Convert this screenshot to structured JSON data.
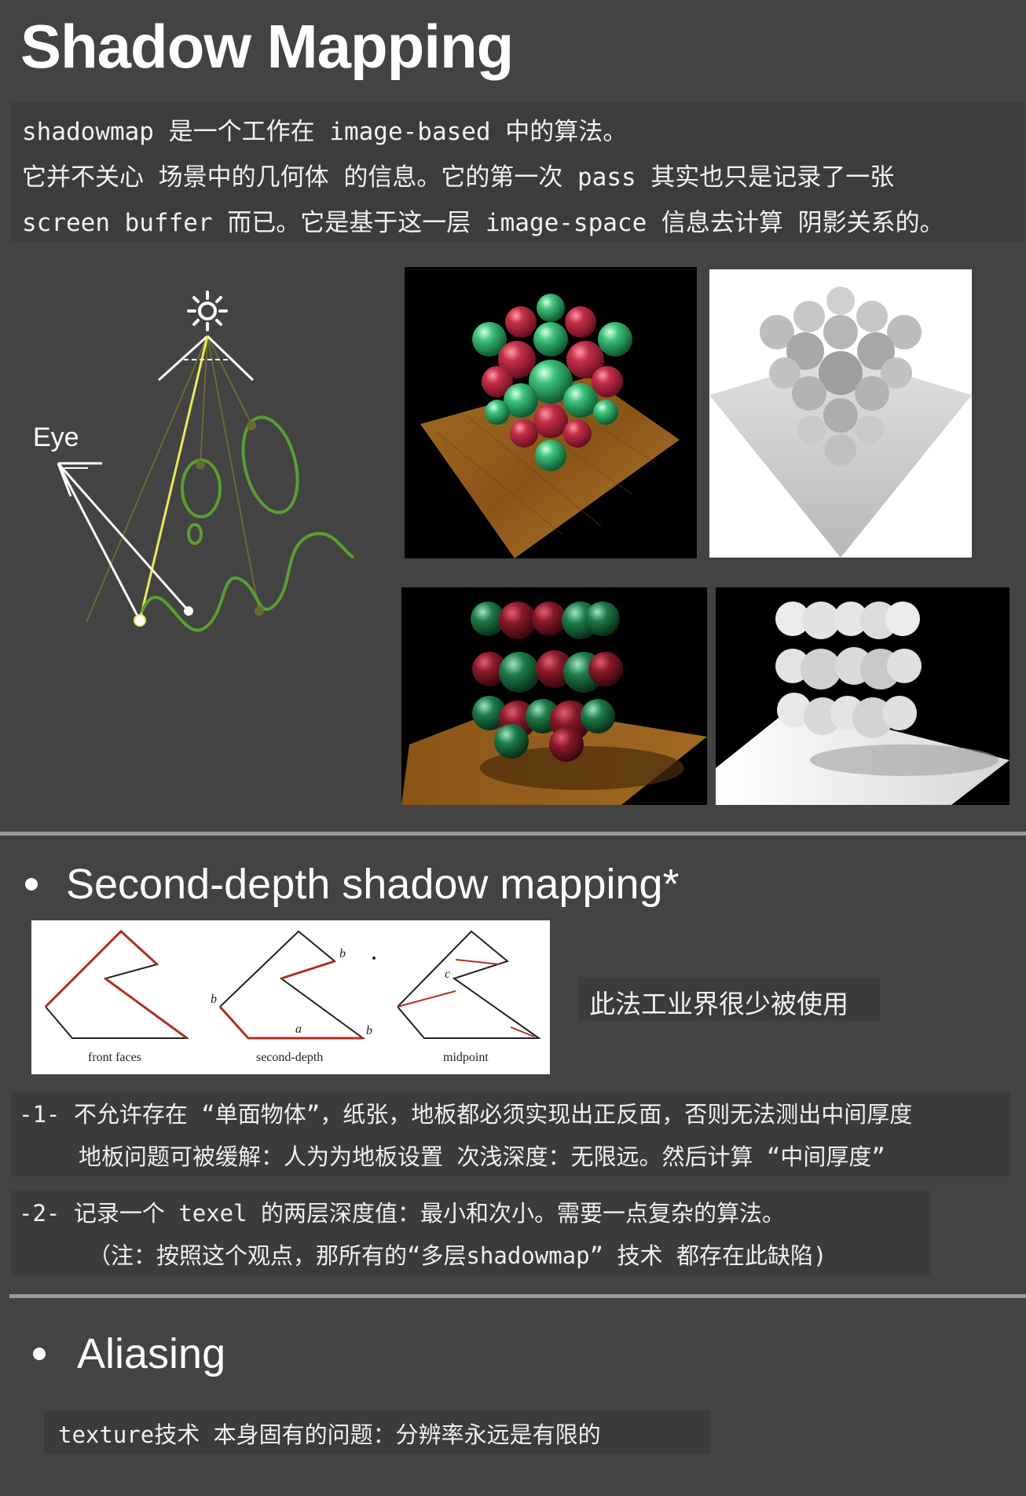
{
  "page": {
    "title": "Shadow Mapping"
  },
  "intro": {
    "lines": [
      "shadowmap 是一个工作在 image-based 中的算法。",
      "它并不关心 场景中的几何体 的信息。它的第一次 pass 其实也只是记录了一张",
      "screen buffer 而已。它是基于这一层 image-space 信息去计算 阴影关系的。"
    ]
  },
  "illustration": {
    "eye_label": "Eye",
    "light_icon": "sun-icon"
  },
  "renders": {
    "top_color_alt": "spheres-color-render",
    "top_depth_alt": "spheres-depth-render",
    "bottom_color_alt": "layered-spheres-color-render",
    "bottom_depth_alt": "layered-spheres-depth-render"
  },
  "second_depth": {
    "heading": "Second-depth shadow mapping*",
    "diagram_labels": {
      "panel1": "front faces",
      "panel2": "second-depth",
      "panel3": "midpoint",
      "a": "a",
      "b1": "b",
      "b2": "b",
      "b3": "b",
      "c": "c"
    },
    "note": "此法工业界很少被使用",
    "items": [
      {
        "line1": "-1- 不允许存在 “单面物体”，纸张，地板都必须实现出正反面，否则无法测出中间厚度",
        "line2": "地板问题可被缓解：人为为地板设置 次浅深度：无限远。然后计算 “中间厚度”"
      },
      {
        "line1": "-2- 记录一个 texel 的两层深度值：最小和次小。需要一点复杂的算法。",
        "line2": "（注：按照这个观点，那所有的“多层shadowmap” 技术 都存在此缺陷)"
      }
    ]
  },
  "aliasing": {
    "heading": "Aliasing",
    "note": "texture技术 本身固有的问题：分辨率永远是有限的"
  },
  "colors": {
    "background": "#434343",
    "panel": "#3b3b3b",
    "light_ray": "#e8e85a",
    "scene_curve": "#5a9e32",
    "sphere_red": "#c43048",
    "sphere_green": "#3ec27a"
  }
}
